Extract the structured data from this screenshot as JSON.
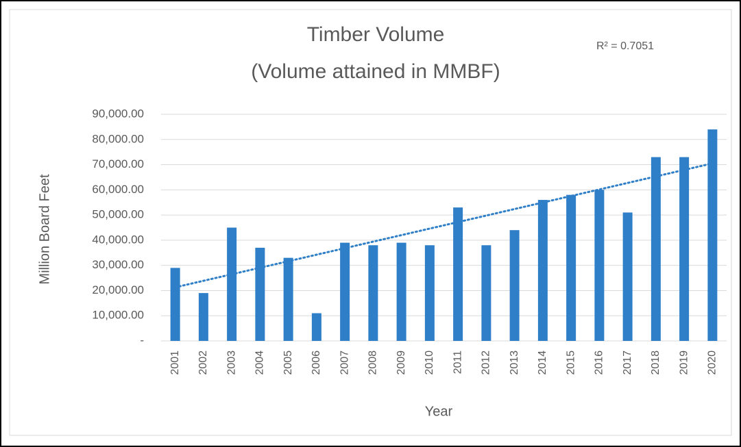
{
  "chart_data": {
    "type": "bar",
    "title": [
      "Timber Volume",
      "(Volume attained in MMBF)"
    ],
    "annotation": "R² = 0.7051",
    "x_label": "Year",
    "y_label": "Million Board Feet",
    "categories": [
      "2001",
      "2002",
      "2003",
      "2004",
      "2005",
      "2006",
      "2007",
      "2008",
      "2009",
      "2010",
      "2011",
      "2012",
      "2013",
      "2014",
      "2015",
      "2016",
      "2017",
      "2018",
      "2019",
      "2020"
    ],
    "values": [
      29000,
      19000,
      45000,
      37000,
      33000,
      11000,
      39000,
      38000,
      39000,
      38000,
      53000,
      38000,
      44000,
      56000,
      58000,
      60000,
      51000,
      73000,
      73000,
      84000
    ],
    "color": "#2f7fc8",
    "trendline": "linear",
    "ylim": [
      0,
      90000
    ],
    "yticks": [
      {
        "value": 0,
        "label": "-"
      },
      {
        "value": 10000,
        "label": "10,000.00"
      },
      {
        "value": 20000,
        "label": "20,000.00"
      },
      {
        "value": 30000,
        "label": "30,000.00"
      },
      {
        "value": 40000,
        "label": "40,000.00"
      },
      {
        "value": 50000,
        "label": "50,000.00"
      },
      {
        "value": 60000,
        "label": "60,000.00"
      },
      {
        "value": 70000,
        "label": "70,000.00"
      },
      {
        "value": 80000,
        "label": "80,000.00"
      },
      {
        "value": 90000,
        "label": "90,000.00"
      }
    ],
    "grid": true
  }
}
